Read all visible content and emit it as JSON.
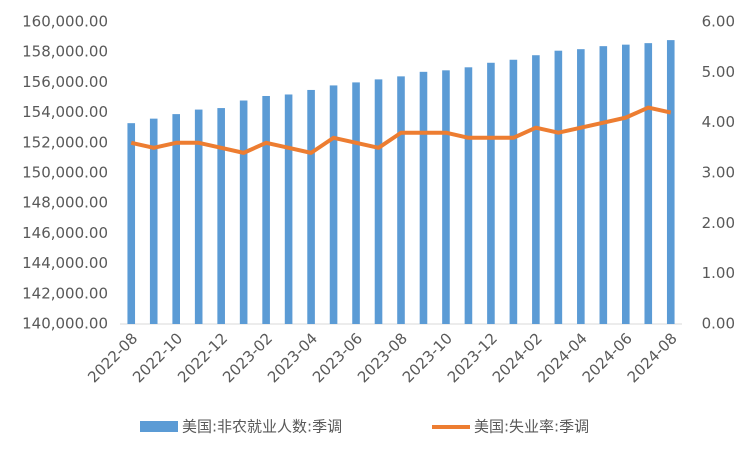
{
  "chart_data": {
    "type": "bar",
    "categories": [
      "2022-08",
      null,
      "2022-10",
      null,
      "2022-12",
      null,
      "2023-02",
      null,
      "2023-04",
      null,
      "2023-06",
      null,
      "2023-08",
      null,
      "2023-10",
      null,
      "2023-12",
      null,
      "2024-02",
      null,
      "2024-04",
      null,
      "2024-06",
      null,
      "2024-08"
    ],
    "series": [
      {
        "name": "美国:非农就业人数:季调",
        "type": "bar",
        "color": "#5b9bd5",
        "values": [
          153300,
          153600,
          153900,
          154200,
          154300,
          154800,
          155100,
          155200,
          155500,
          155800,
          156000,
          156200,
          156400,
          156700,
          156800,
          157000,
          157300,
          157500,
          157800,
          158100,
          158200,
          158400,
          158500,
          158600,
          158800
        ]
      },
      {
        "name": "美国:失业率:季调",
        "type": "line",
        "axis": "y2",
        "color": "#ed7d31",
        "values": [
          3.6,
          3.5,
          3.6,
          3.6,
          3.5,
          3.4,
          3.6,
          3.5,
          3.4,
          3.7,
          3.6,
          3.5,
          3.8,
          3.8,
          3.8,
          3.7,
          3.7,
          3.7,
          3.9,
          3.8,
          3.9,
          4.0,
          4.1,
          4.3,
          4.2
        ]
      }
    ],
    "ylim": [
      140000,
      160000
    ],
    "yticks": [
      {
        "value": 140000,
        "label": "140,000.00"
      },
      {
        "value": 142000,
        "label": "142,000.00"
      },
      {
        "value": 144000,
        "label": "144,000.00"
      },
      {
        "value": 146000,
        "label": "146,000.00"
      },
      {
        "value": 148000,
        "label": "148,000.00"
      },
      {
        "value": 150000,
        "label": "150,000.00"
      },
      {
        "value": 152000,
        "label": "152,000.00"
      },
      {
        "value": 154000,
        "label": "154,000.00"
      },
      {
        "value": 156000,
        "label": "156,000.00"
      },
      {
        "value": 158000,
        "label": "158,000.00"
      },
      {
        "value": 160000,
        "label": "160,000.00"
      }
    ],
    "y2lim": [
      0,
      6
    ],
    "y2ticks": [
      {
        "value": 0,
        "label": "0.00"
      },
      {
        "value": 1,
        "label": "1.00"
      },
      {
        "value": 2,
        "label": "2.00"
      },
      {
        "value": 3,
        "label": "3.00"
      },
      {
        "value": 4,
        "label": "4.00"
      },
      {
        "value": 5,
        "label": "5.00"
      },
      {
        "value": 6,
        "label": "6.00"
      }
    ],
    "grid": false
  }
}
